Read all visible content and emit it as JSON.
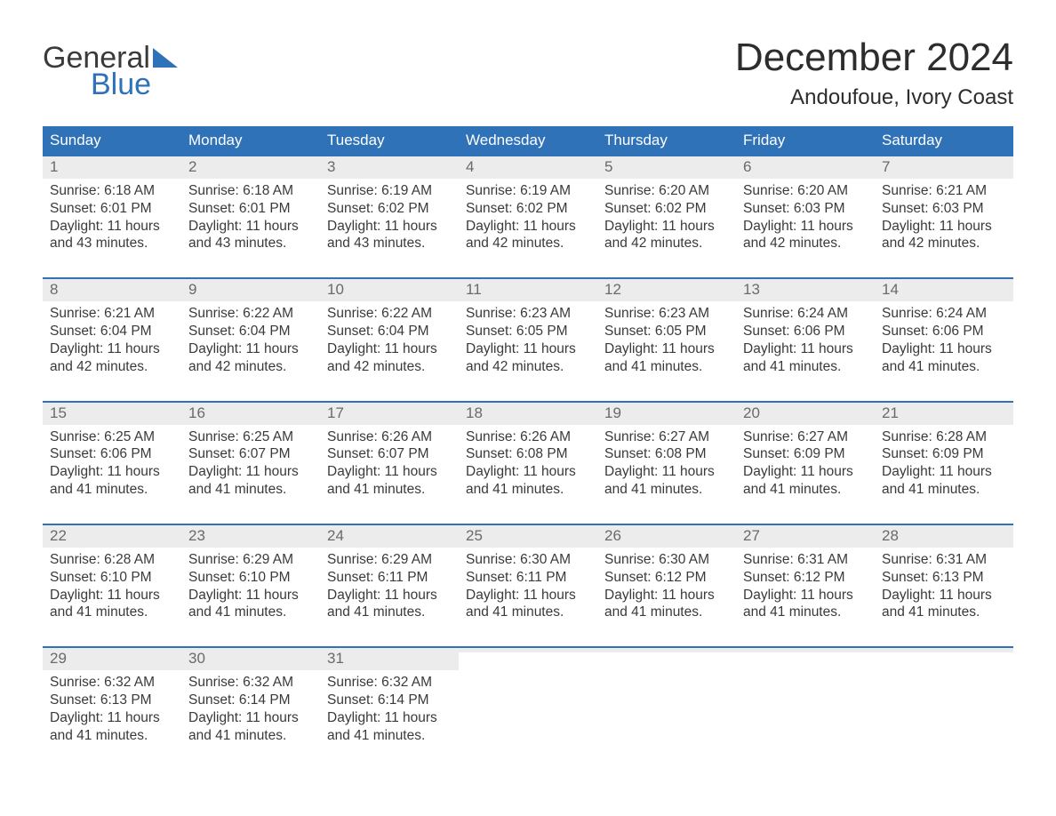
{
  "logo": {
    "text1": "General",
    "text2": "Blue",
    "triangle_color": "#2f72b8"
  },
  "title": "December 2024",
  "location": "Andoufoue, Ivory Coast",
  "colors": {
    "header_bg": "#2f72b8",
    "header_text": "#ffffff",
    "daynum_bg": "#ececec",
    "daynum_text": "#6a6a6a",
    "body_text": "#3a3a3a",
    "week_border": "#2f72b8",
    "background": "#ffffff"
  },
  "weekdays": [
    "Sunday",
    "Monday",
    "Tuesday",
    "Wednesday",
    "Thursday",
    "Friday",
    "Saturday"
  ],
  "weeks": [
    [
      {
        "num": "1",
        "sunrise": "Sunrise: 6:18 AM",
        "sunset": "Sunset: 6:01 PM",
        "daylight1": "Daylight: 11 hours",
        "daylight2": "and 43 minutes."
      },
      {
        "num": "2",
        "sunrise": "Sunrise: 6:18 AM",
        "sunset": "Sunset: 6:01 PM",
        "daylight1": "Daylight: 11 hours",
        "daylight2": "and 43 minutes."
      },
      {
        "num": "3",
        "sunrise": "Sunrise: 6:19 AM",
        "sunset": "Sunset: 6:02 PM",
        "daylight1": "Daylight: 11 hours",
        "daylight2": "and 43 minutes."
      },
      {
        "num": "4",
        "sunrise": "Sunrise: 6:19 AM",
        "sunset": "Sunset: 6:02 PM",
        "daylight1": "Daylight: 11 hours",
        "daylight2": "and 42 minutes."
      },
      {
        "num": "5",
        "sunrise": "Sunrise: 6:20 AM",
        "sunset": "Sunset: 6:02 PM",
        "daylight1": "Daylight: 11 hours",
        "daylight2": "and 42 minutes."
      },
      {
        "num": "6",
        "sunrise": "Sunrise: 6:20 AM",
        "sunset": "Sunset: 6:03 PM",
        "daylight1": "Daylight: 11 hours",
        "daylight2": "and 42 minutes."
      },
      {
        "num": "7",
        "sunrise": "Sunrise: 6:21 AM",
        "sunset": "Sunset: 6:03 PM",
        "daylight1": "Daylight: 11 hours",
        "daylight2": "and 42 minutes."
      }
    ],
    [
      {
        "num": "8",
        "sunrise": "Sunrise: 6:21 AM",
        "sunset": "Sunset: 6:04 PM",
        "daylight1": "Daylight: 11 hours",
        "daylight2": "and 42 minutes."
      },
      {
        "num": "9",
        "sunrise": "Sunrise: 6:22 AM",
        "sunset": "Sunset: 6:04 PM",
        "daylight1": "Daylight: 11 hours",
        "daylight2": "and 42 minutes."
      },
      {
        "num": "10",
        "sunrise": "Sunrise: 6:22 AM",
        "sunset": "Sunset: 6:04 PM",
        "daylight1": "Daylight: 11 hours",
        "daylight2": "and 42 minutes."
      },
      {
        "num": "11",
        "sunrise": "Sunrise: 6:23 AM",
        "sunset": "Sunset: 6:05 PM",
        "daylight1": "Daylight: 11 hours",
        "daylight2": "and 42 minutes."
      },
      {
        "num": "12",
        "sunrise": "Sunrise: 6:23 AM",
        "sunset": "Sunset: 6:05 PM",
        "daylight1": "Daylight: 11 hours",
        "daylight2": "and 41 minutes."
      },
      {
        "num": "13",
        "sunrise": "Sunrise: 6:24 AM",
        "sunset": "Sunset: 6:06 PM",
        "daylight1": "Daylight: 11 hours",
        "daylight2": "and 41 minutes."
      },
      {
        "num": "14",
        "sunrise": "Sunrise: 6:24 AM",
        "sunset": "Sunset: 6:06 PM",
        "daylight1": "Daylight: 11 hours",
        "daylight2": "and 41 minutes."
      }
    ],
    [
      {
        "num": "15",
        "sunrise": "Sunrise: 6:25 AM",
        "sunset": "Sunset: 6:06 PM",
        "daylight1": "Daylight: 11 hours",
        "daylight2": "and 41 minutes."
      },
      {
        "num": "16",
        "sunrise": "Sunrise: 6:25 AM",
        "sunset": "Sunset: 6:07 PM",
        "daylight1": "Daylight: 11 hours",
        "daylight2": "and 41 minutes."
      },
      {
        "num": "17",
        "sunrise": "Sunrise: 6:26 AM",
        "sunset": "Sunset: 6:07 PM",
        "daylight1": "Daylight: 11 hours",
        "daylight2": "and 41 minutes."
      },
      {
        "num": "18",
        "sunrise": "Sunrise: 6:26 AM",
        "sunset": "Sunset: 6:08 PM",
        "daylight1": "Daylight: 11 hours",
        "daylight2": "and 41 minutes."
      },
      {
        "num": "19",
        "sunrise": "Sunrise: 6:27 AM",
        "sunset": "Sunset: 6:08 PM",
        "daylight1": "Daylight: 11 hours",
        "daylight2": "and 41 minutes."
      },
      {
        "num": "20",
        "sunrise": "Sunrise: 6:27 AM",
        "sunset": "Sunset: 6:09 PM",
        "daylight1": "Daylight: 11 hours",
        "daylight2": "and 41 minutes."
      },
      {
        "num": "21",
        "sunrise": "Sunrise: 6:28 AM",
        "sunset": "Sunset: 6:09 PM",
        "daylight1": "Daylight: 11 hours",
        "daylight2": "and 41 minutes."
      }
    ],
    [
      {
        "num": "22",
        "sunrise": "Sunrise: 6:28 AM",
        "sunset": "Sunset: 6:10 PM",
        "daylight1": "Daylight: 11 hours",
        "daylight2": "and 41 minutes."
      },
      {
        "num": "23",
        "sunrise": "Sunrise: 6:29 AM",
        "sunset": "Sunset: 6:10 PM",
        "daylight1": "Daylight: 11 hours",
        "daylight2": "and 41 minutes."
      },
      {
        "num": "24",
        "sunrise": "Sunrise: 6:29 AM",
        "sunset": "Sunset: 6:11 PM",
        "daylight1": "Daylight: 11 hours",
        "daylight2": "and 41 minutes."
      },
      {
        "num": "25",
        "sunrise": "Sunrise: 6:30 AM",
        "sunset": "Sunset: 6:11 PM",
        "daylight1": "Daylight: 11 hours",
        "daylight2": "and 41 minutes."
      },
      {
        "num": "26",
        "sunrise": "Sunrise: 6:30 AM",
        "sunset": "Sunset: 6:12 PM",
        "daylight1": "Daylight: 11 hours",
        "daylight2": "and 41 minutes."
      },
      {
        "num": "27",
        "sunrise": "Sunrise: 6:31 AM",
        "sunset": "Sunset: 6:12 PM",
        "daylight1": "Daylight: 11 hours",
        "daylight2": "and 41 minutes."
      },
      {
        "num": "28",
        "sunrise": "Sunrise: 6:31 AM",
        "sunset": "Sunset: 6:13 PM",
        "daylight1": "Daylight: 11 hours",
        "daylight2": "and 41 minutes."
      }
    ],
    [
      {
        "num": "29",
        "sunrise": "Sunrise: 6:32 AM",
        "sunset": "Sunset: 6:13 PM",
        "daylight1": "Daylight: 11 hours",
        "daylight2": "and 41 minutes."
      },
      {
        "num": "30",
        "sunrise": "Sunrise: 6:32 AM",
        "sunset": "Sunset: 6:14 PM",
        "daylight1": "Daylight: 11 hours",
        "daylight2": "and 41 minutes."
      },
      {
        "num": "31",
        "sunrise": "Sunrise: 6:32 AM",
        "sunset": "Sunset: 6:14 PM",
        "daylight1": "Daylight: 11 hours",
        "daylight2": "and 41 minutes."
      },
      null,
      null,
      null,
      null
    ]
  ]
}
